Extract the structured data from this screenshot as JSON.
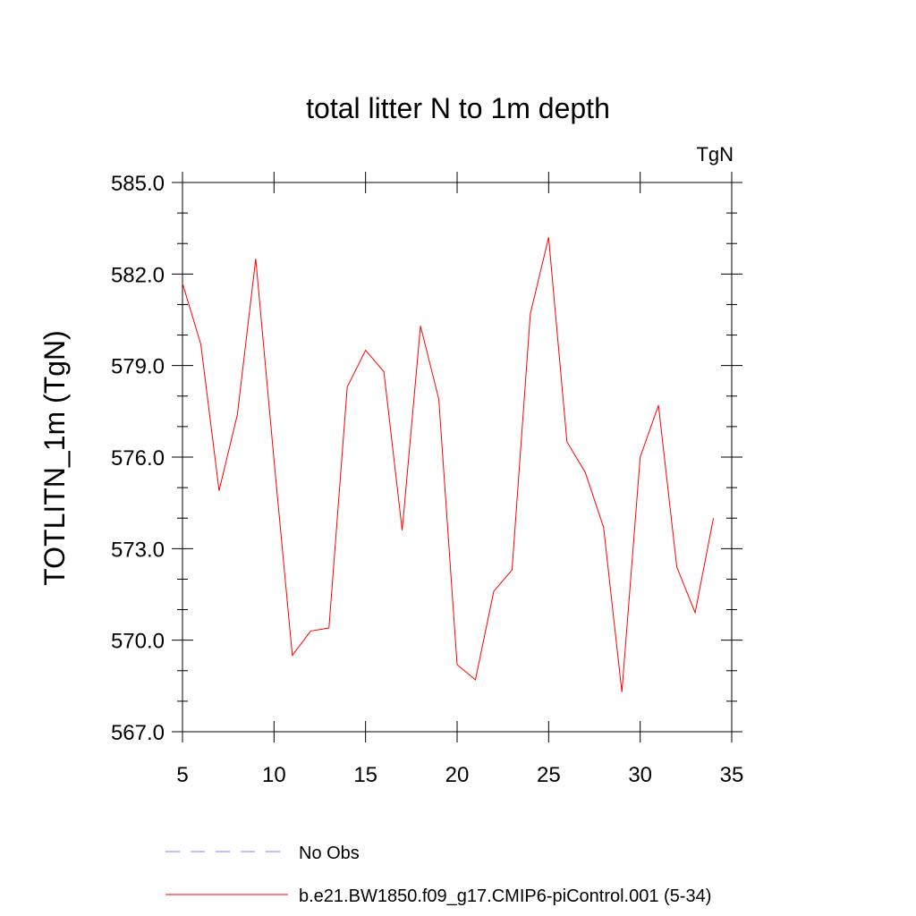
{
  "chart_data": {
    "type": "line",
    "title": "total litter N to 1m depth",
    "units_label": "TgN",
    "ylabel": "TOTLITN_1m  (TgN)",
    "xlabel": "",
    "xlim": [
      5,
      35
    ],
    "ylim": [
      567.0,
      585.0
    ],
    "x_ticks": [
      "5",
      "10",
      "15",
      "20",
      "25",
      "30",
      "35"
    ],
    "y_ticks": [
      "567.0",
      "570.0",
      "573.0",
      "576.0",
      "579.0",
      "582.0",
      "585.0"
    ],
    "grid": false,
    "legend_position": "bottom",
    "series": [
      {
        "name": "No Obs",
        "color": "#8080ff",
        "style": "dashed",
        "x": [],
        "y": []
      },
      {
        "name": "b.e21.BW1850.f09_g17.CMIP6-piControl.001 (5-34)",
        "color": "#ff0000",
        "style": "solid",
        "x": [
          5,
          6,
          7,
          8,
          9,
          10,
          11,
          12,
          13,
          14,
          15,
          16,
          17,
          18,
          19,
          20,
          21,
          22,
          23,
          24,
          25,
          26,
          27,
          28,
          29,
          30,
          31,
          32,
          33,
          34
        ],
        "y": [
          581.7,
          579.7,
          574.9,
          577.4,
          582.5,
          575.9,
          569.5,
          570.3,
          570.4,
          578.3,
          579.5,
          578.8,
          573.6,
          580.3,
          577.9,
          569.2,
          568.7,
          571.6,
          572.3,
          580.7,
          583.2,
          576.5,
          575.5,
          573.7,
          568.3,
          576.0,
          577.7,
          572.4,
          570.9,
          574.0
        ]
      }
    ]
  }
}
